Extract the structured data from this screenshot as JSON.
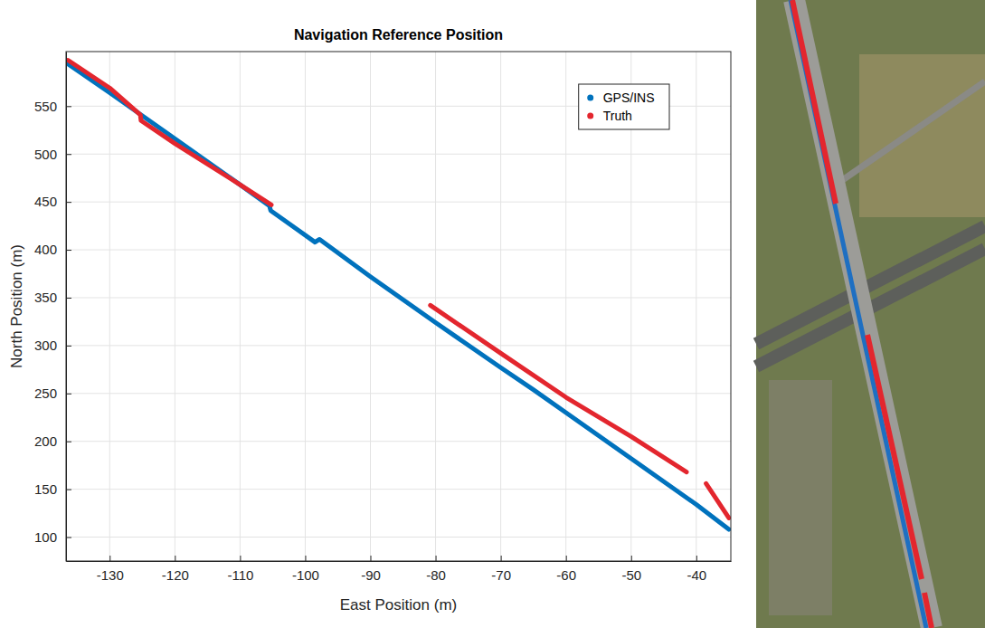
{
  "chart_data": {
    "type": "line",
    "title": "Navigation Reference Position",
    "x_label": "East Position (m)",
    "y_label": "North Position (m)",
    "xlim": [
      -136.7,
      -34.7
    ],
    "ylim": [
      75,
      607
    ],
    "xticks": [
      -130,
      -120,
      -110,
      -100,
      -90,
      -80,
      -70,
      -60,
      -50,
      -40
    ],
    "yticks": [
      100,
      150,
      200,
      250,
      300,
      350,
      400,
      450,
      500,
      550
    ],
    "grid": true,
    "legend": "northeast",
    "series": [
      {
        "name": "GPS/INS",
        "color": "#0072bd",
        "marker": ".",
        "x": [
          -136.6,
          -130,
          -120,
          -110,
          -105.5,
          -105.3,
          -98.5,
          -97.8,
          -90,
          -80,
          -70,
          -65,
          -60,
          -50,
          -40,
          -35
        ],
        "values": [
          595,
          564,
          516,
          468,
          446,
          441,
          408,
          411,
          372,
          324,
          277,
          254,
          230,
          182,
          134,
          108
        ]
      },
      {
        "name": "Truth",
        "color": "#e3262e",
        "marker": ".",
        "x": [
          -136.4,
          -130,
          -125.3,
          -125.2,
          -120,
          -110,
          -105.2,
          null,
          -80.8,
          -70,
          -60,
          -50,
          -41.5,
          null,
          -38.5,
          -35
        ],
        "values": [
          598,
          569,
          541,
          535,
          511,
          468,
          447,
          null,
          342,
          292,
          246,
          205,
          168,
          null,
          156,
          120
        ]
      }
    ]
  }
}
